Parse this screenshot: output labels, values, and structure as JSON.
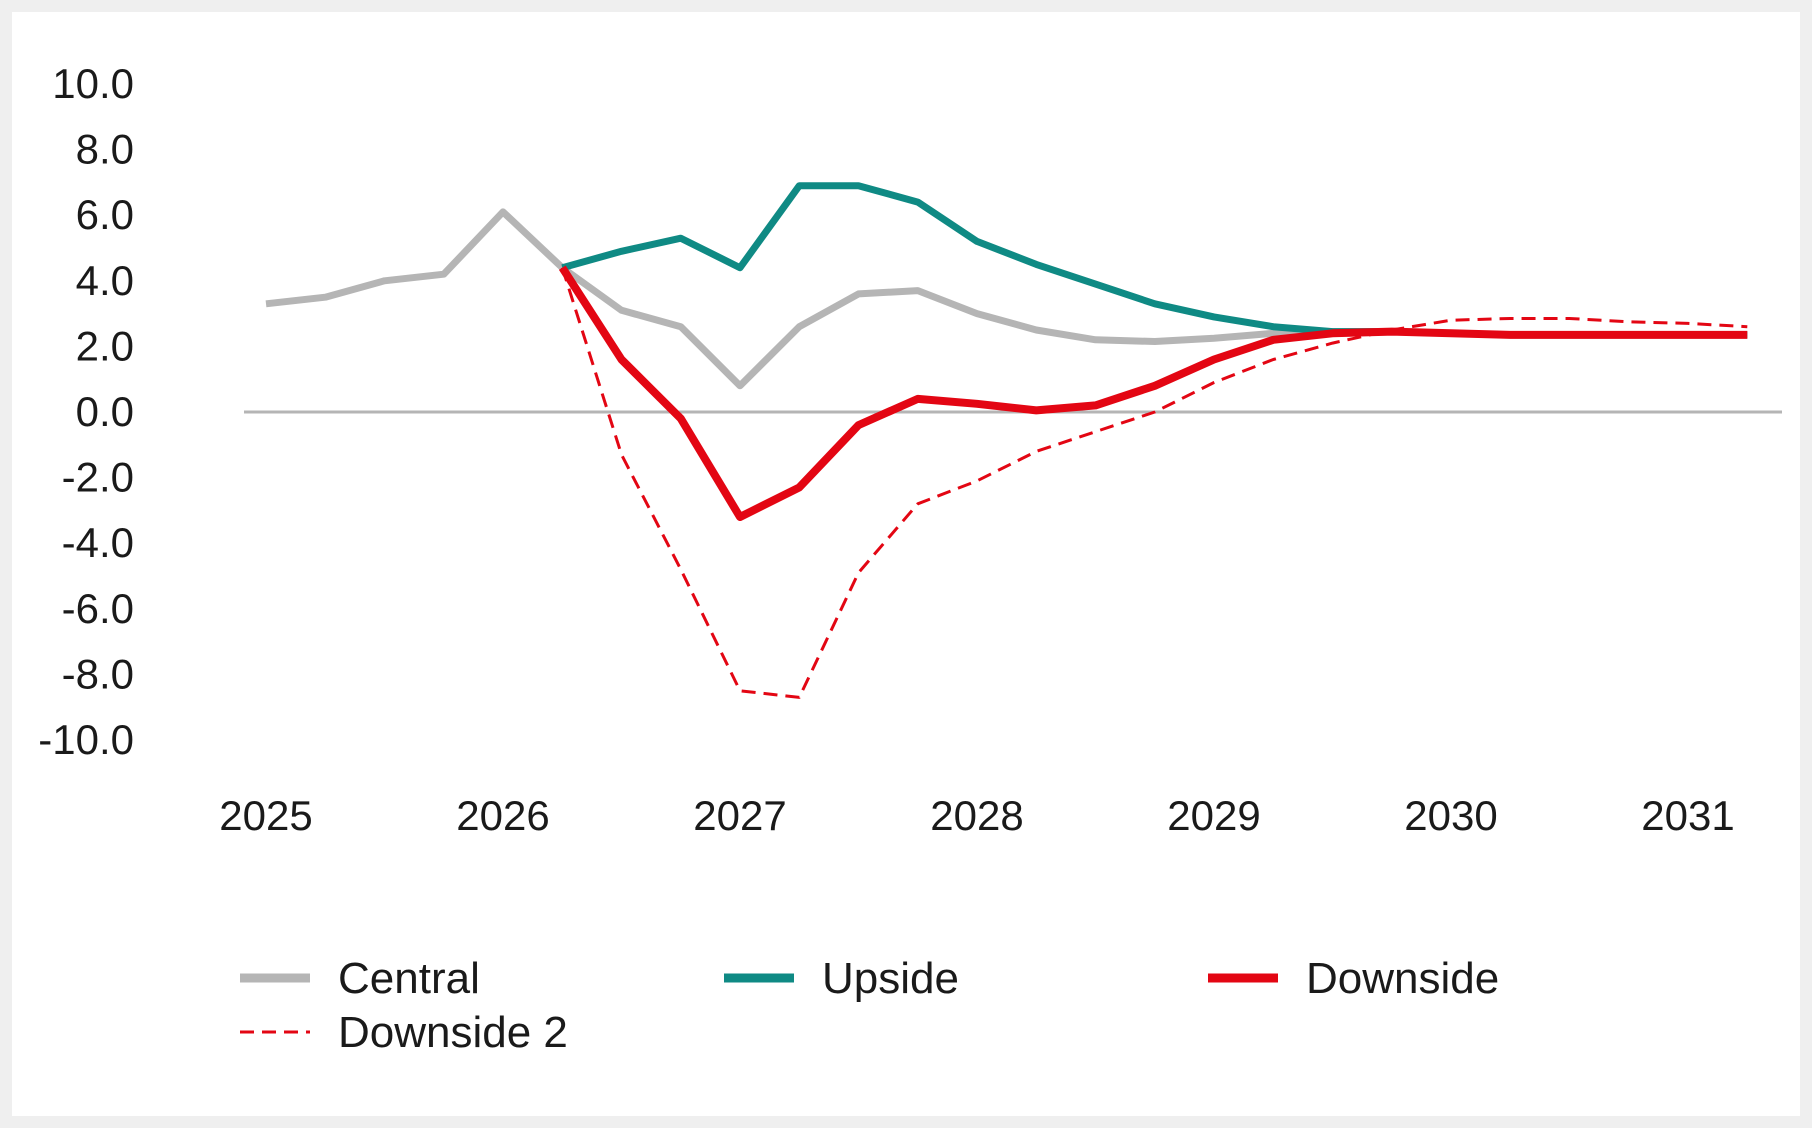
{
  "chart_data": {
    "type": "line",
    "title": "",
    "xlabel": "",
    "ylabel": "",
    "ylim": [
      -10,
      10
    ],
    "xlim": [
      2025,
      2031.3
    ],
    "y_ticks": [
      "10.0",
      "8.0",
      "6.0",
      "4.0",
      "2.0",
      "0.0",
      "-2.0",
      "-4.0",
      "-6.0",
      "-8.0",
      "-10.0"
    ],
    "x_ticks": [
      "2025",
      "2026",
      "2027",
      "2028",
      "2029",
      "2030",
      "2031"
    ],
    "grid": false,
    "zero_line": true,
    "legend_position": "bottom",
    "series": [
      {
        "name": "Central",
        "color": "#b5b5b5",
        "style": "solid",
        "x": [
          2025.0,
          2025.25,
          2025.5,
          2025.75,
          2026.0,
          2026.25,
          2026.5,
          2026.75,
          2027.0,
          2027.25,
          2027.5,
          2027.75,
          2028.0,
          2028.25,
          2028.5,
          2028.75,
          2029.0,
          2029.25,
          2029.5,
          2029.75,
          2030.0,
          2030.25,
          2030.5,
          2030.75,
          2031.0,
          2031.25
        ],
        "y": [
          3.3,
          3.5,
          4.0,
          4.2,
          6.1,
          4.4,
          3.1,
          2.6,
          0.8,
          2.6,
          3.6,
          3.7,
          3.0,
          2.5,
          2.2,
          2.15,
          2.25,
          2.4,
          2.45,
          2.45,
          2.4,
          2.35,
          2.35,
          2.35,
          2.35,
          2.35
        ]
      },
      {
        "name": "Upside",
        "color": "#0f8a84",
        "style": "solid",
        "x": [
          2026.25,
          2026.5,
          2026.75,
          2027.0,
          2027.25,
          2027.5,
          2027.75,
          2028.0,
          2028.25,
          2028.5,
          2028.75,
          2029.0,
          2029.25,
          2029.5,
          2029.75,
          2030.0,
          2030.25,
          2030.5,
          2030.75,
          2031.0,
          2031.25
        ],
        "y": [
          4.4,
          4.9,
          5.3,
          4.4,
          6.9,
          6.9,
          6.4,
          5.2,
          4.5,
          3.9,
          3.3,
          2.9,
          2.6,
          2.45,
          2.45,
          2.4,
          2.35,
          2.35,
          2.35,
          2.35,
          2.35
        ]
      },
      {
        "name": "Downside",
        "color": "#e30613",
        "style": "solid",
        "x": [
          2026.25,
          2026.5,
          2026.75,
          2027.0,
          2027.25,
          2027.5,
          2027.75,
          2028.0,
          2028.25,
          2028.5,
          2028.75,
          2029.0,
          2029.25,
          2029.5,
          2029.75,
          2030.0,
          2030.25,
          2030.5,
          2030.75,
          2031.0,
          2031.25
        ],
        "y": [
          4.4,
          1.6,
          -0.2,
          -3.2,
          -2.3,
          -0.4,
          0.4,
          0.25,
          0.05,
          0.2,
          0.8,
          1.6,
          2.2,
          2.4,
          2.45,
          2.4,
          2.35,
          2.35,
          2.35,
          2.35,
          2.35
        ]
      },
      {
        "name": "Downside 2",
        "color": "#e30613",
        "style": "dashed",
        "x": [
          2026.25,
          2026.5,
          2026.75,
          2027.0,
          2027.25,
          2027.5,
          2027.75,
          2028.0,
          2028.25,
          2028.5,
          2028.75,
          2029.0,
          2029.25,
          2029.5,
          2029.75,
          2030.0,
          2030.25,
          2030.5,
          2030.75,
          2031.0,
          2031.25
        ],
        "y": [
          4.4,
          -1.3,
          -4.8,
          -8.5,
          -8.7,
          -4.9,
          -2.8,
          -2.1,
          -1.2,
          -0.6,
          0.0,
          0.9,
          1.6,
          2.1,
          2.5,
          2.8,
          2.85,
          2.85,
          2.75,
          2.7,
          2.6
        ]
      }
    ]
  }
}
